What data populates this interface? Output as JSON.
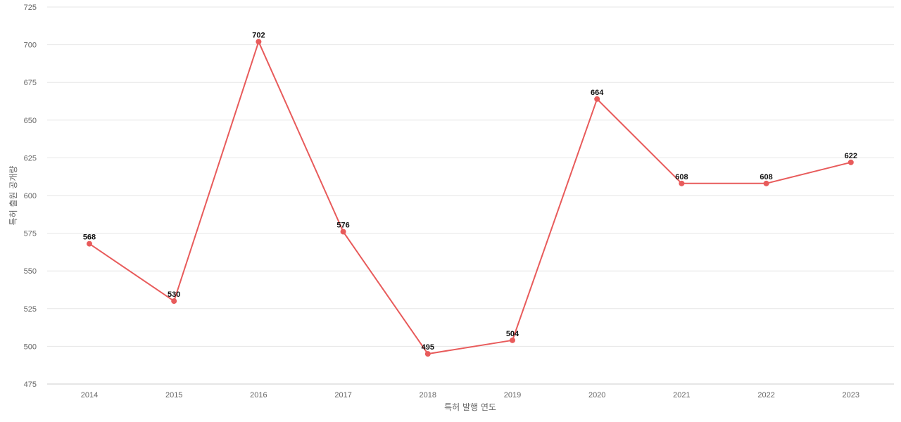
{
  "chart_data": {
    "type": "line",
    "title": "",
    "xlabel": "특허 발행 연도",
    "ylabel": "특허 출원 공개량",
    "categories": [
      "2014",
      "2015",
      "2016",
      "2017",
      "2018",
      "2019",
      "2020",
      "2021",
      "2022",
      "2023"
    ],
    "series": [
      {
        "values": [
          568,
          530,
          702,
          576,
          495,
          504,
          664,
          608,
          608,
          622
        ],
        "color": "#e85b5b"
      }
    ],
    "ylim": [
      475,
      725
    ],
    "yticks": [
      475,
      500,
      525,
      550,
      575,
      600,
      625,
      650,
      675,
      700,
      725
    ],
    "grid": true,
    "legend": "none",
    "data_labels": true
  }
}
